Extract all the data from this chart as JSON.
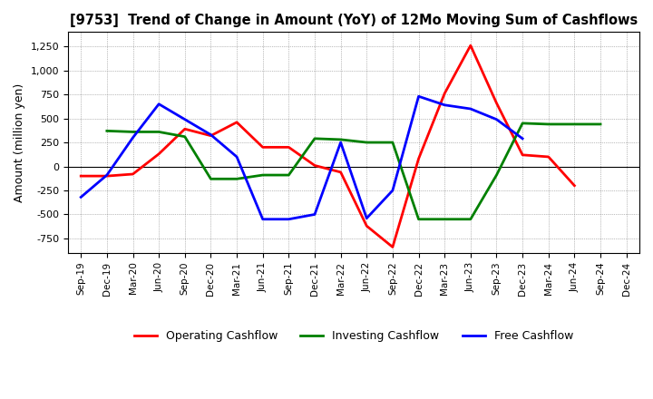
{
  "title": "[9753]  Trend of Change in Amount (YoY) of 12Mo Moving Sum of Cashflows",
  "ylabel": "Amount (million yen)",
  "x_labels": [
    "Sep-19",
    "Dec-19",
    "Mar-20",
    "Jun-20",
    "Sep-20",
    "Dec-20",
    "Mar-21",
    "Jun-21",
    "Sep-21",
    "Dec-21",
    "Mar-22",
    "Jun-22",
    "Sep-22",
    "Dec-22",
    "Mar-23",
    "Jun-23",
    "Sep-23",
    "Dec-23",
    "Mar-24",
    "Jun-24",
    "Sep-24",
    "Dec-24"
  ],
  "operating": [
    -100,
    -100,
    -80,
    130,
    390,
    320,
    460,
    200,
    200,
    10,
    -60,
    -620,
    -840,
    80,
    760,
    1260,
    660,
    120,
    100,
    -200,
    null,
    null
  ],
  "investing": [
    null,
    370,
    360,
    360,
    310,
    -130,
    -130,
    -90,
    -90,
    290,
    280,
    250,
    250,
    -550,
    -550,
    -550,
    -90,
    450,
    440,
    440,
    440,
    null
  ],
  "free": [
    -320,
    -90,
    300,
    650,
    490,
    330,
    100,
    -550,
    -550,
    -500,
    250,
    -540,
    -250,
    730,
    640,
    600,
    490,
    290,
    null,
    null,
    null,
    null
  ],
  "ylim": [
    -900,
    1400
  ],
  "yticks": [
    -750,
    -500,
    -250,
    0,
    250,
    500,
    750,
    1000,
    1250
  ],
  "operating_color": "#ff0000",
  "investing_color": "#008000",
  "free_color": "#0000ff",
  "legend_labels": [
    "Operating Cashflow",
    "Investing Cashflow",
    "Free Cashflow"
  ]
}
